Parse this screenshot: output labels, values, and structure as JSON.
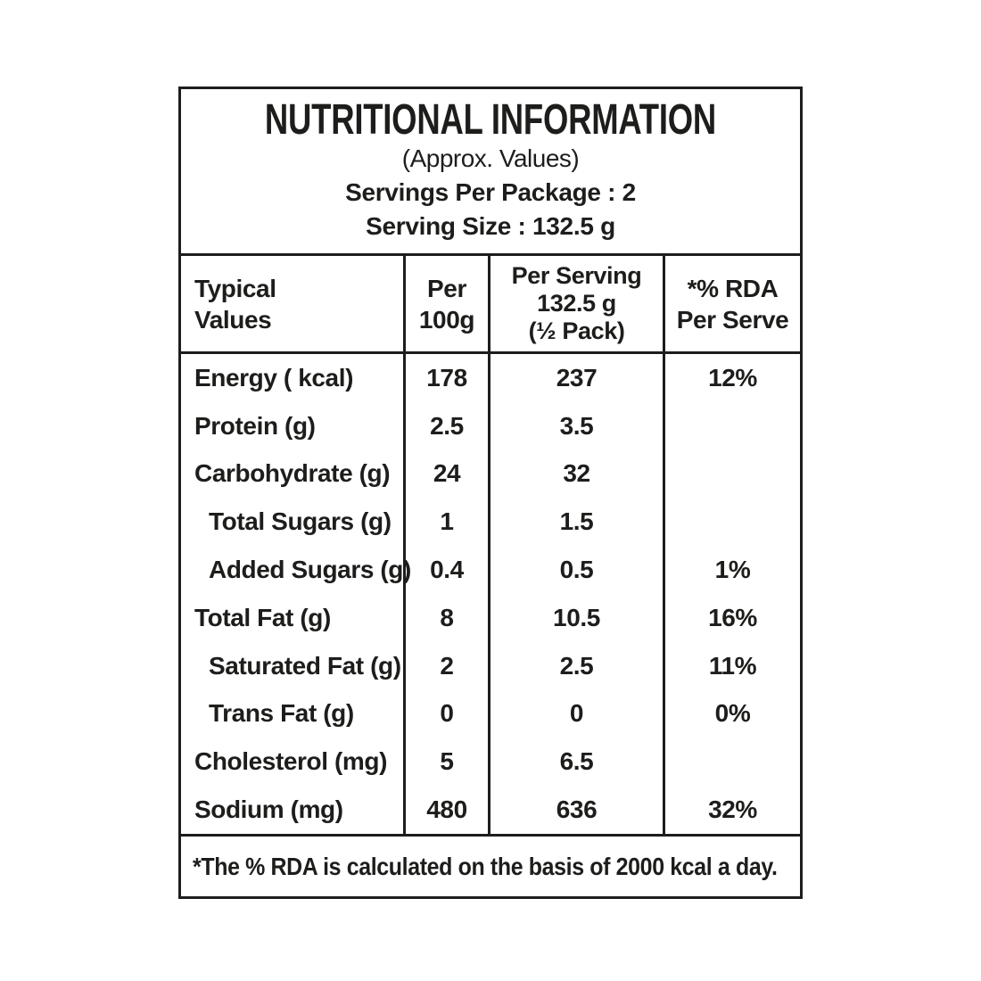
{
  "title_block": {
    "title": "NUTRITIONAL INFORMATION",
    "subtitle": "(Approx. Values)",
    "servings_per_package": "Servings Per Package : 2",
    "serving_size": "Serving Size : 132.5 g"
  },
  "column_headers": {
    "typical_values": [
      "Typical",
      "Values"
    ],
    "per_100g": [
      "Per",
      "100g"
    ],
    "per_serving": [
      "Per Serving",
      "132.5 g",
      "(½ Pack)"
    ],
    "rda_per_serve": [
      "*% RDA",
      "Per Serve"
    ]
  },
  "rows": [
    {
      "label": "Energy ( kcal)",
      "per_100g": "178",
      "per_serving": "237",
      "rda_percent": "12%"
    },
    {
      "label": "Protein (g)",
      "per_100g": "2.5",
      "per_serving": "3.5",
      "rda_percent": ""
    },
    {
      "label": "Carbohydrate (g)",
      "per_100g": "24",
      "per_serving": "32",
      "rda_percent": ""
    },
    {
      "label": "Total Sugars (g)",
      "per_100g": "1",
      "per_serving": "1.5",
      "rda_percent": ""
    },
    {
      "label": "Added Sugars (g)",
      "per_100g": "0.4",
      "per_serving": "0.5",
      "rda_percent": "1%"
    },
    {
      "label": "Total Fat (g)",
      "per_100g": "8",
      "per_serving": "10.5",
      "rda_percent": "16%"
    },
    {
      "label": "Saturated Fat (g)",
      "per_100g": "2",
      "per_serving": "2.5",
      "rda_percent": "11%"
    },
    {
      "label": "Trans Fat (g)",
      "per_100g": "0",
      "per_serving": "0",
      "rda_percent": "0%"
    },
    {
      "label": "Cholesterol (mg)",
      "per_100g": "5",
      "per_serving": "6.5",
      "rda_percent": ""
    },
    {
      "label": "Sodium (mg)",
      "per_100g": "480",
      "per_serving": "636",
      "rda_percent": "32%"
    }
  ],
  "footer_note": "*The % RDA is calculated on the basis of 2000 kcal a day.",
  "colors": {
    "text": "#1d1d1b",
    "border": "#1d1d1b",
    "background": "#ffffff"
  }
}
